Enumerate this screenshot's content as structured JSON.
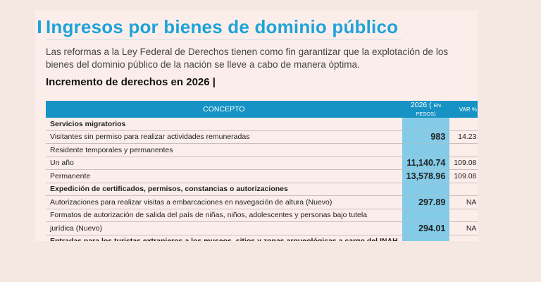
{
  "title": "Ingresos por bienes de dominio público",
  "intro": " Las reformas a la Ley Federal de Derechos tienen como fin garantizar que la explotación de los bienes del dominio público de la nación se lleve a cabo de manera óptima.",
  "subtitle": "Incremento de derechos en 2026 |",
  "table": {
    "headers": {
      "concepto": "CONCEPTO",
      "year": "2026 (",
      "year_unit": "EN PESOS)",
      "var": "VAR %"
    },
    "rows": [
      {
        "concepto": "Servicios migratorios",
        "valor": "",
        "var": "",
        "group": true
      },
      {
        "concepto": "Visitantes sin permiso para realizar actividades remuneradas",
        "valor": "983",
        "var": "14.23"
      },
      {
        "concepto": "Residente temporales y permanentes",
        "valor": "",
        "var": ""
      },
      {
        "concepto": "Un año",
        "valor": "11,140.74",
        "var": "109.08"
      },
      {
        "concepto": "Permanente",
        "valor": "13,578.96",
        "var": "109.08"
      },
      {
        "concepto": "Expedición de certificados, permisos, constancias o autorizaciones",
        "valor": "",
        "var": "",
        "group": true
      },
      {
        "concepto": "Autorizaciones para realizar visitas a embarcaciones en navegación de altura (Nuevo)",
        "valor": "297.89",
        "var": "NA"
      },
      {
        "concepto": "Formatos de autorización de salida del país de niñas, niños, adolescentes y personas bajo tutela",
        "valor": "",
        "var": ""
      },
      {
        "concepto": "jurídica (Nuevo)",
        "valor": "294.01",
        "var": "NA"
      },
      {
        "concepto": "Entradas para los turistas extranjeros a los museos, sitios y zonas arqueológicas a cargo del INAH",
        "valor": "",
        "var": "",
        "group": true
      }
    ]
  },
  "colors": {
    "accent": "#1ea3d8",
    "header": "#1693c4",
    "highlight": "#84cbe8"
  }
}
